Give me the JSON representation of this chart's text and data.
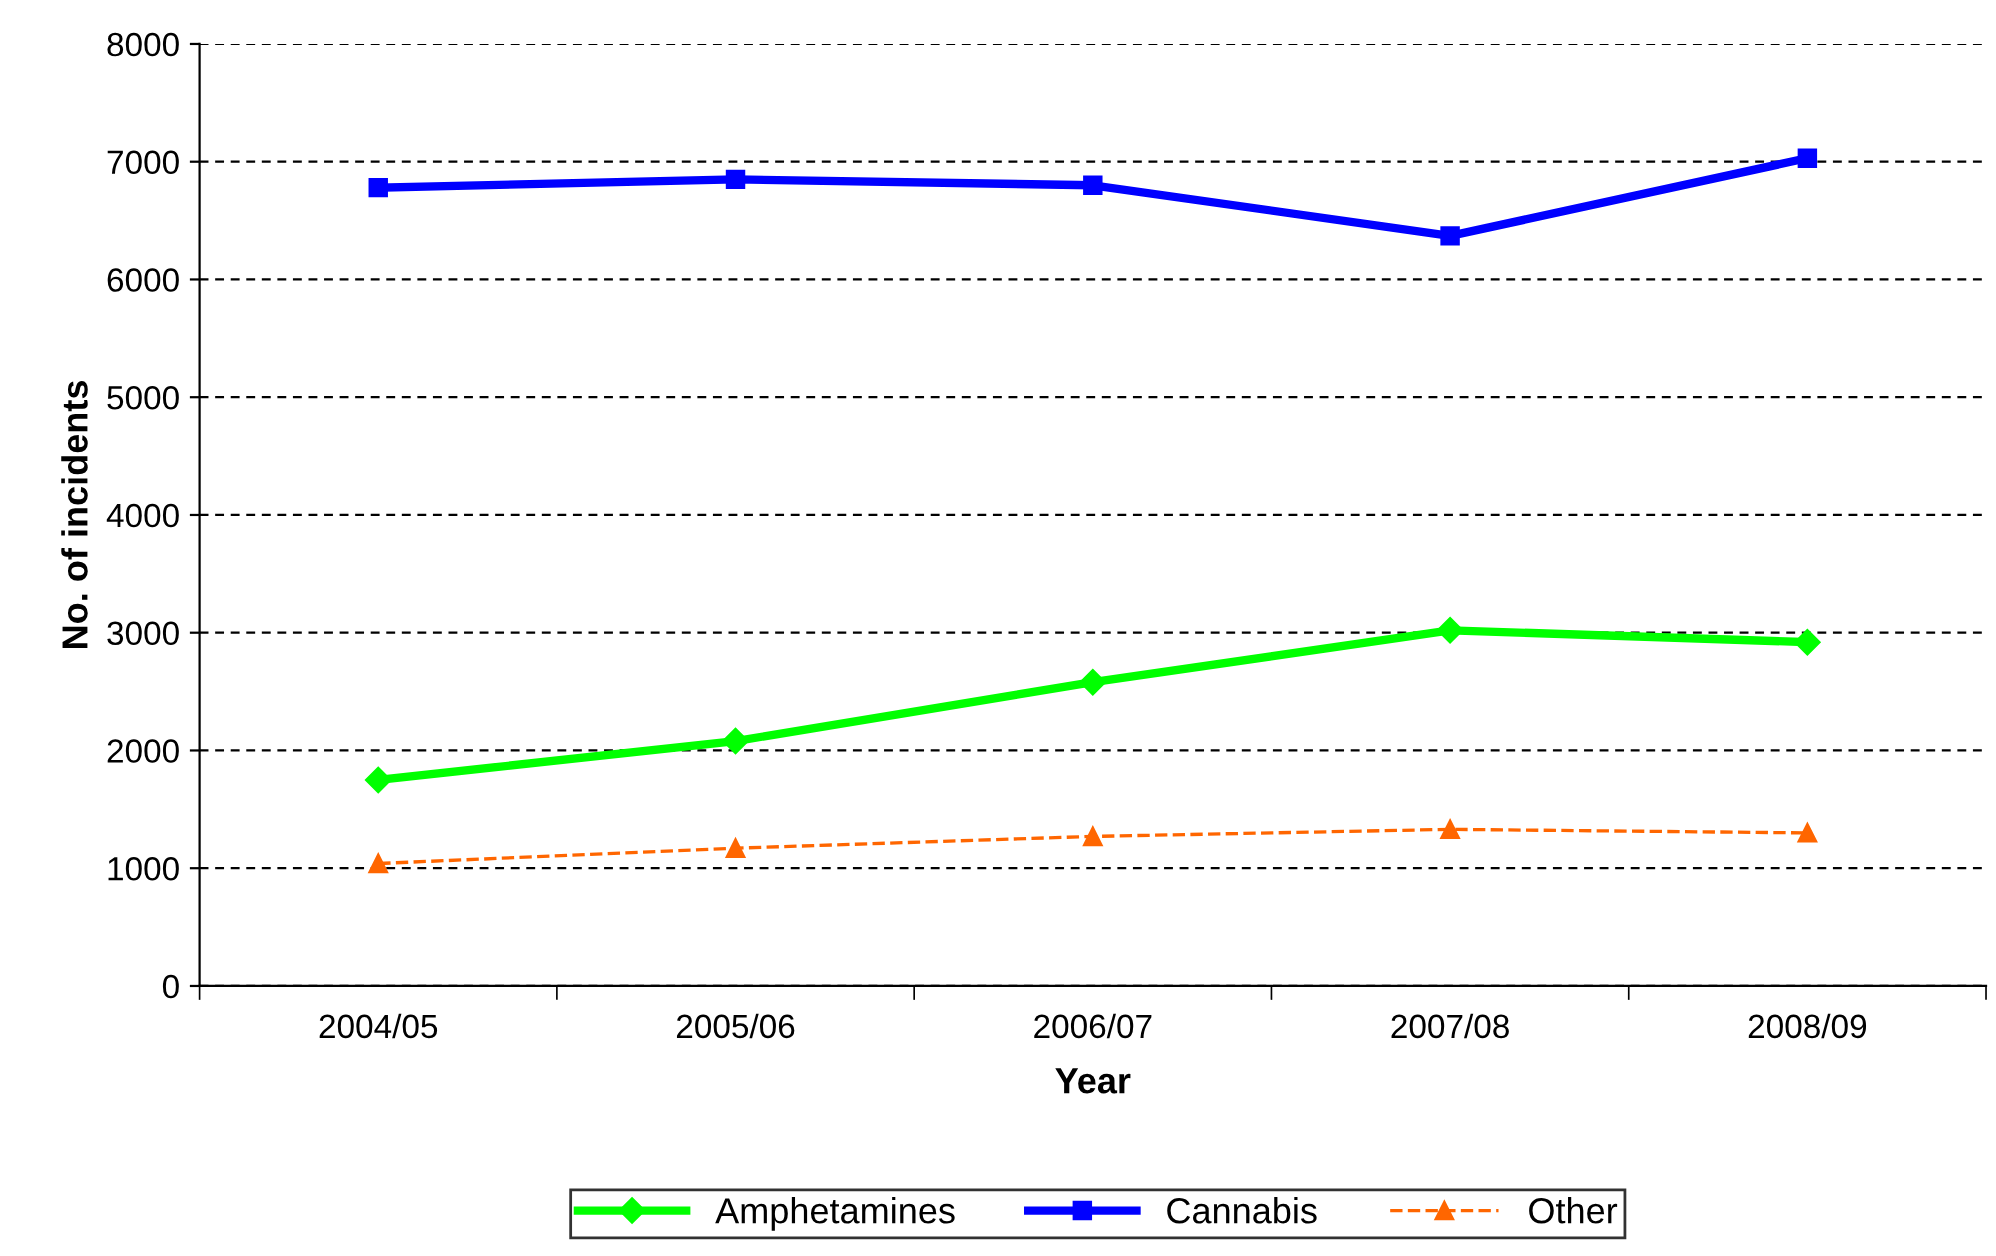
{
  "chart_data": {
    "type": "line",
    "xlabel": "Year",
    "ylabel": "No. of incidents",
    "categories": [
      "2004/05",
      "2005/06",
      "2006/07",
      "2007/08",
      "2008/09"
    ],
    "series": [
      {
        "name": "Amphetamines",
        "color": "#00ff00",
        "marker": "diamond",
        "line_style": "solid",
        "values": [
          1750,
          2080,
          2580,
          3020,
          2920
        ]
      },
      {
        "name": "Cannabis",
        "color": "#0000ff",
        "marker": "square",
        "line_style": "solid",
        "values": [
          6780,
          6850,
          6800,
          6370,
          7030
        ]
      },
      {
        "name": "Other",
        "color": "#ff6600",
        "marker": "triangle",
        "line_style": "dashed",
        "values": [
          1040,
          1170,
          1270,
          1330,
          1300
        ]
      }
    ],
    "ylim": [
      0,
      8000
    ],
    "yticks": [
      0,
      1000,
      2000,
      3000,
      4000,
      5000,
      6000,
      7000,
      8000
    ],
    "grid": "y",
    "legend": "bottom"
  }
}
